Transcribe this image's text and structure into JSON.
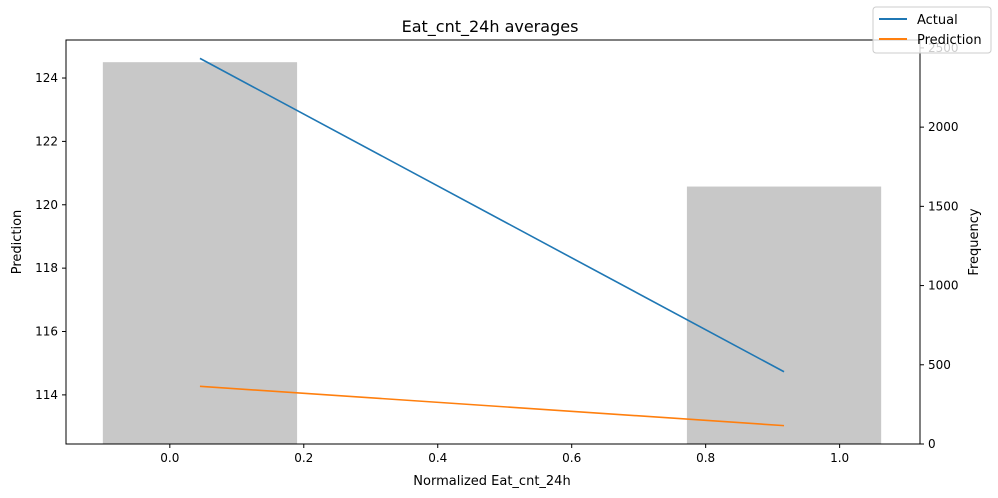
{
  "chart_data": {
    "type": "line",
    "title": "Eat_cnt_24h averages",
    "xlabel": "Normalized Eat_cnt_24h",
    "ylabel": "Prediction",
    "y2label": "Frequency",
    "xlim": [
      -0.155,
      1.12
    ],
    "ylim": [
      112.45,
      125.2
    ],
    "y2lim": [
      0,
      2550
    ],
    "xticks": [
      0.0,
      0.2,
      0.4,
      0.6,
      0.8,
      1.0
    ],
    "xtick_labels": [
      "0.0",
      "0.2",
      "0.4",
      "0.6",
      "0.8",
      "1.0"
    ],
    "yticks": [
      114,
      116,
      118,
      120,
      122,
      124
    ],
    "ytick_labels": [
      "114",
      "116",
      "118",
      "120",
      "122",
      "124"
    ],
    "y2ticks": [
      0,
      500,
      1000,
      1500,
      2000,
      2500
    ],
    "y2tick_labels": [
      "0",
      "500",
      "1000",
      "1500",
      "2000",
      "2500"
    ],
    "bars": {
      "name": "Frequency",
      "color": "#c8c8c8",
      "items": [
        {
          "x0": -0.1,
          "x1": 0.19,
          "value": 2410
        },
        {
          "x0": 0.772,
          "x1": 1.062,
          "value": 1625
        }
      ]
    },
    "series": [
      {
        "name": "Actual",
        "color": "#1f77b4",
        "x": [
          0.045,
          0.917
        ],
        "y": [
          124.62,
          114.73
        ]
      },
      {
        "name": "Prediction",
        "color": "#ff7f0e",
        "x": [
          0.045,
          0.917
        ],
        "y": [
          114.27,
          113.03
        ]
      }
    ],
    "legend": {
      "placement": "top-right",
      "entries": [
        "Actual",
        "Prediction"
      ]
    },
    "grid": false
  }
}
